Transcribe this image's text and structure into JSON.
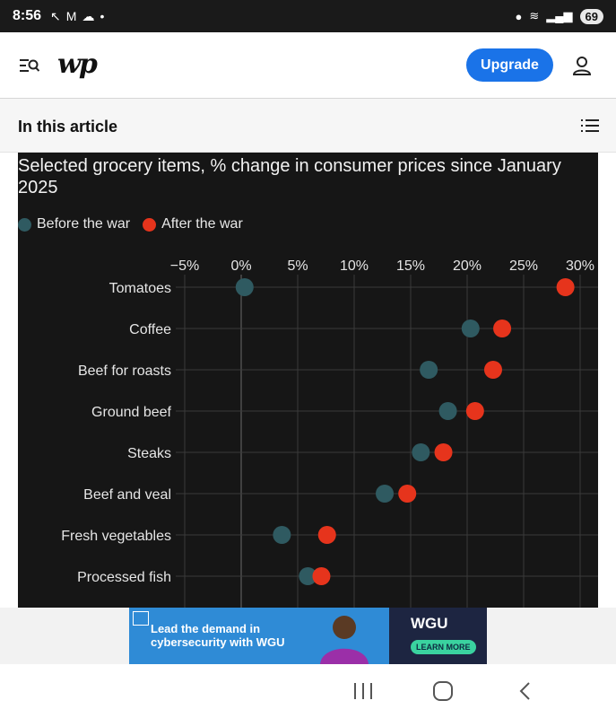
{
  "status_bar": {
    "time": "8:56",
    "battery": "69",
    "icons": [
      "missed-call-icon",
      "gmail-icon",
      "cloud-icon",
      "dot-icon",
      "location-icon",
      "wifi-icon",
      "signal-icon",
      "battery-icon"
    ]
  },
  "header": {
    "logo_text": "wp",
    "upgrade_label": "Upgrade",
    "brand_color": "#1a73e8"
  },
  "article_bar": {
    "title": "In this article"
  },
  "chart_data": {
    "type": "scatter",
    "title": "Selected grocery items, % change in consumer prices since January 2025",
    "categories": [
      "Tomatoes",
      "Coffee",
      "Beef for roasts",
      "Ground beef",
      "Steaks",
      "Beef and veal",
      "Fresh vegetables",
      "Processed fish"
    ],
    "series": [
      {
        "name": "Before the war",
        "color": "#2f5a61",
        "values": [
          0.3,
          20.3,
          16.6,
          18.3,
          15.9,
          12.7,
          3.6,
          5.9
        ]
      },
      {
        "name": "After the war",
        "color": "#e6341c",
        "values": [
          28.7,
          23.1,
          22.3,
          20.7,
          17.9,
          14.7,
          7.6,
          7.1
        ]
      }
    ],
    "xlim": [
      -5,
      30
    ],
    "xticks": [
      "−5%",
      "0%",
      "5%",
      "10%",
      "15%",
      "20%",
      "25%",
      "30%"
    ],
    "xtick_values": [
      -5,
      0,
      5,
      10,
      15,
      20,
      25,
      30
    ],
    "grid": true,
    "legend": "top-left",
    "background": "#161616"
  },
  "ad": {
    "line1": "Lead the demand in",
    "line2": "cybersecurity with WGU",
    "brand": "WGU",
    "cta": "LEARN MORE"
  },
  "nav": {
    "icons": [
      "recent-apps-icon",
      "home-icon",
      "back-icon"
    ]
  }
}
